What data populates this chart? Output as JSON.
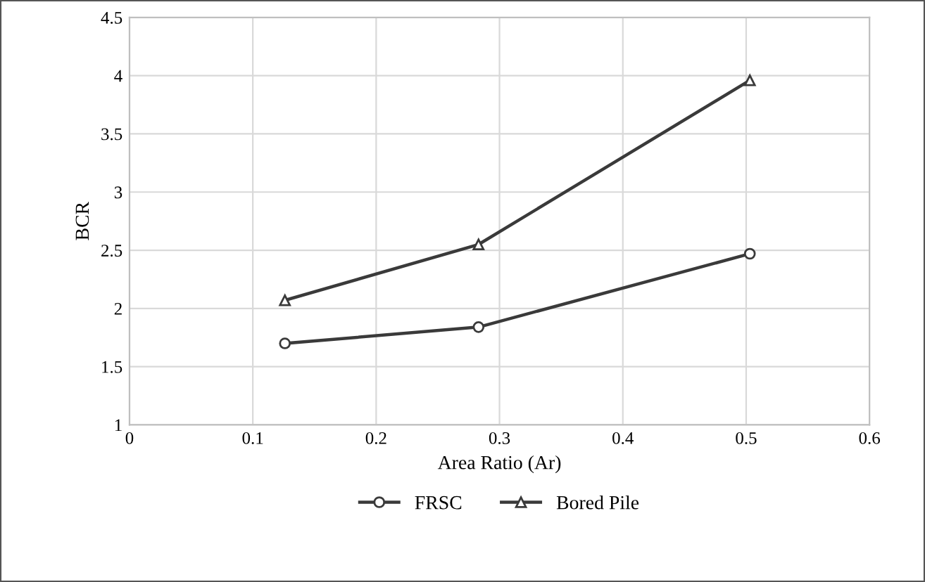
{
  "chart_data": {
    "type": "line",
    "xlabel": "Area Ratio (Ar)",
    "ylabel": "BCR",
    "series": [
      {
        "name": "FRSC",
        "color": "#3a3a3a",
        "marker": "circle",
        "x": [
          0.126,
          0.283,
          0.503
        ],
        "values": [
          1.7,
          1.84,
          2.47
        ]
      },
      {
        "name": "Bored Pile",
        "color": "#3a3a3a",
        "marker": "triangle",
        "x": [
          0.126,
          0.283,
          0.503
        ],
        "values": [
          2.07,
          2.55,
          3.96
        ]
      }
    ],
    "xlim": [
      0,
      0.6
    ],
    "xticks": [
      0,
      0.1,
      0.2,
      0.3,
      0.4,
      0.5,
      0.6
    ],
    "ylim": [
      1,
      4.5
    ],
    "yticks": [
      1,
      1.5,
      2,
      2.5,
      3,
      3.5,
      4,
      4.5
    ],
    "grid": true,
    "legend": "bottom",
    "line_style": "solid"
  }
}
